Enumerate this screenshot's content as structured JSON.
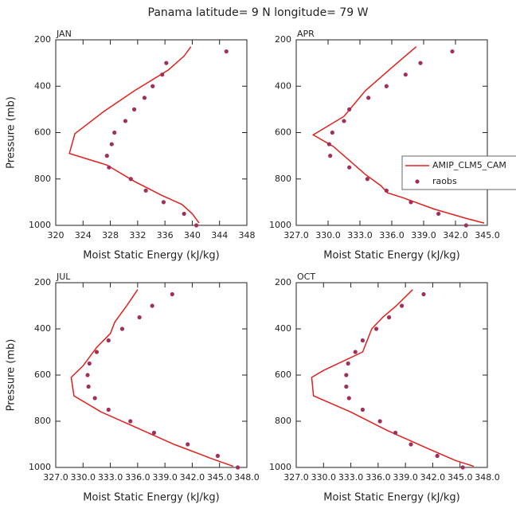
{
  "title": "Panama  latitude= 9 N longitude= 79 W",
  "chart_data": [
    {
      "type": "line",
      "title": "JAN",
      "xlabel": "Moist Static Energy (kJ/kg)",
      "ylabel": "Pressure (mb)",
      "xlim": [
        320,
        348
      ],
      "xticks": [
        320,
        324,
        328,
        332,
        336,
        340,
        344,
        348
      ],
      "ylim": [
        200,
        1000
      ],
      "yticks": [
        200,
        400,
        600,
        800,
        1000
      ],
      "y_inverted": true,
      "series": [
        {
          "name": "AMIP_CLM5_CAM",
          "style": "line",
          "color": "#e0201c",
          "x": [
            339.8,
            338.8,
            336.5,
            331.5,
            327,
            322.8,
            322,
            327.5,
            331.5,
            335.5,
            338.5,
            340,
            341
          ],
          "y": [
            230,
            270,
            330,
            420,
            510,
            605,
            690,
            740,
            810,
            870,
            910,
            950,
            990
          ]
        },
        {
          "name": "raobs",
          "style": "markers",
          "color": "#a0305a",
          "x": [
            345,
            336.2,
            335.6,
            334.2,
            333,
            331.5,
            330.2,
            328.6,
            328.2,
            327.5,
            327.8,
            331,
            333.2,
            335.8,
            338.8,
            340.6
          ],
          "y": [
            250,
            300,
            350,
            400,
            450,
            500,
            550,
            600,
            650,
            700,
            750,
            800,
            850,
            900,
            950,
            1000
          ]
        }
      ]
    },
    {
      "type": "line",
      "title": "APR",
      "xlabel": "Moist Static Energy (kJ/kg)",
      "xlim": [
        327,
        345
      ],
      "xticks": [
        {
          "value": 327,
          "label": "327.0"
        },
        {
          "value": 330,
          "label": "330.0"
        },
        {
          "value": 333,
          "label": "333.0"
        },
        {
          "value": 336,
          "label": "336.0"
        },
        {
          "value": 339,
          "label": "339.0"
        },
        {
          "value": 342,
          "label": "342.0"
        },
        {
          "value": 345,
          "label": "345.0"
        }
      ],
      "ylim": [
        200,
        1000
      ],
      "yticks": [
        200,
        400,
        600,
        800,
        1000
      ],
      "y_inverted": true,
      "legend": "right",
      "series": [
        {
          "name": "AMIP_CLM5_CAM",
          "style": "line",
          "color": "#e0201c",
          "x": [
            338.3,
            336,
            333.5,
            331.5,
            328.6,
            330.5,
            332,
            333.5,
            335,
            335.6,
            337,
            340,
            343,
            344.7
          ],
          "y": [
            230,
            320,
            420,
            530,
            610,
            660,
            720,
            780,
            830,
            860,
            880,
            930,
            970,
            990
          ]
        },
        {
          "name": "raobs",
          "style": "markers",
          "color": "#a0305a",
          "x": [
            341.7,
            338.7,
            337.3,
            335.5,
            333.8,
            332,
            331.5,
            330.4,
            330.1,
            330.2,
            332,
            333.7,
            335.5,
            337.8,
            340.4,
            343
          ],
          "y": [
            250,
            300,
            350,
            400,
            450,
            500,
            550,
            600,
            650,
            700,
            750,
            800,
            850,
            900,
            950,
            1000
          ]
        }
      ]
    },
    {
      "type": "line",
      "title": "JUL",
      "xlabel": "Moist Static Energy (kJ/kg)",
      "ylabel": "Pressure (mb)",
      "xlim": [
        327,
        348
      ],
      "xticks": [
        {
          "value": 327,
          "label": "327.0"
        },
        {
          "value": 330,
          "label": "330.0"
        },
        {
          "value": 333,
          "label": "333.0"
        },
        {
          "value": 336,
          "label": "336.0"
        },
        {
          "value": 339,
          "label": "339.0"
        },
        {
          "value": 342,
          "label": "342.0"
        },
        {
          "value": 345,
          "label": "345.0"
        },
        {
          "value": 348,
          "label": "348.0"
        }
      ],
      "ylim": [
        200,
        1000
      ],
      "yticks": [
        200,
        400,
        600,
        800,
        1000
      ],
      "y_inverted": true,
      "series": [
        {
          "name": "AMIP_CLM5_CAM",
          "style": "line",
          "color": "#e0201c",
          "x": [
            336,
            334.8,
            333.5,
            333,
            331.5,
            330,
            328.7,
            329,
            332,
            336,
            340,
            344,
            346.5
          ],
          "y": [
            230,
            300,
            370,
            420,
            480,
            560,
            610,
            690,
            760,
            830,
            900,
            960,
            995
          ]
        },
        {
          "name": "raobs",
          "style": "markers",
          "color": "#a0305a",
          "x": [
            339.8,
            337.6,
            336.2,
            334.3,
            332.8,
            331.5,
            330.7,
            330.5,
            330.6,
            331.3,
            332.8,
            335.2,
            337.8,
            341.5,
            344.8,
            347
          ],
          "y": [
            250,
            300,
            350,
            400,
            450,
            500,
            550,
            600,
            650,
            700,
            750,
            800,
            850,
            900,
            950,
            1000
          ]
        }
      ]
    },
    {
      "type": "line",
      "title": "OCT",
      "xlabel": "Moist Static Energy (kJ/kg)",
      "xlim": [
        327,
        348
      ],
      "xticks": [
        {
          "value": 327,
          "label": "327.0"
        },
        {
          "value": 330,
          "label": "330.0"
        },
        {
          "value": 333,
          "label": "333.0"
        },
        {
          "value": 336,
          "label": "336.0"
        },
        {
          "value": 339,
          "label": "339.0"
        },
        {
          "value": 342,
          "label": "342.0"
        },
        {
          "value": 345,
          "label": "345.0"
        },
        {
          "value": 348,
          "label": "348.0"
        }
      ],
      "ylim": [
        200,
        1000
      ],
      "yticks": [
        200,
        400,
        600,
        800,
        1000
      ],
      "y_inverted": true,
      "series": [
        {
          "name": "AMIP_CLM5_CAM",
          "style": "line",
          "color": "#e0201c",
          "x": [
            339.8,
            338,
            336.5,
            335.3,
            334.3,
            330,
            328.7,
            328.9,
            333,
            337,
            341,
            344.5,
            346.5
          ],
          "y": [
            230,
            300,
            350,
            400,
            500,
            580,
            610,
            690,
            760,
            840,
            910,
            970,
            995
          ]
        },
        {
          "name": "raobs",
          "style": "markers",
          "color": "#a0305a",
          "x": [
            341,
            338.6,
            337.2,
            335.8,
            334.3,
            333.5,
            332.7,
            332.5,
            332.5,
            332.8,
            334.3,
            336.2,
            337.9,
            339.6,
            342.5,
            345.3
          ],
          "y": [
            250,
            300,
            350,
            400,
            450,
            500,
            550,
            600,
            650,
            700,
            750,
            800,
            850,
            900,
            950,
            1000
          ]
        }
      ]
    }
  ]
}
